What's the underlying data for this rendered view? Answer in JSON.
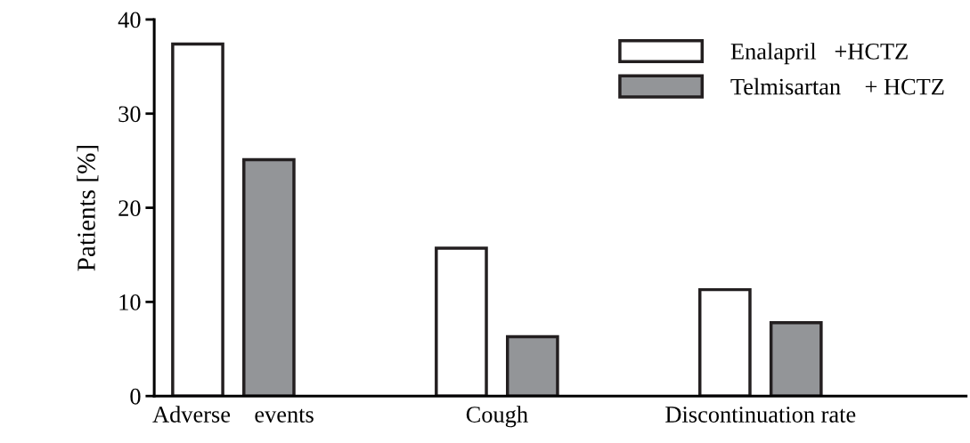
{
  "chart_data": {
    "type": "bar",
    "ylabel": "Patients [%]",
    "categories": [
      "Adverse    events",
      "Cough",
      "Discontinuation rate"
    ],
    "series": [
      {
        "name": "Enalapril   +HCTZ",
        "color": "#ffffff",
        "values": [
          37.4,
          15.7,
          11.3
        ]
      },
      {
        "name": "Telmisartan    + HCTZ",
        "color": "#939598",
        "values": [
          25.1,
          6.3,
          7.8
        ]
      }
    ],
    "ylim": [
      0,
      40
    ],
    "yticks": [
      0,
      10,
      20,
      30,
      40
    ],
    "grid": false,
    "legend": "top right"
  }
}
